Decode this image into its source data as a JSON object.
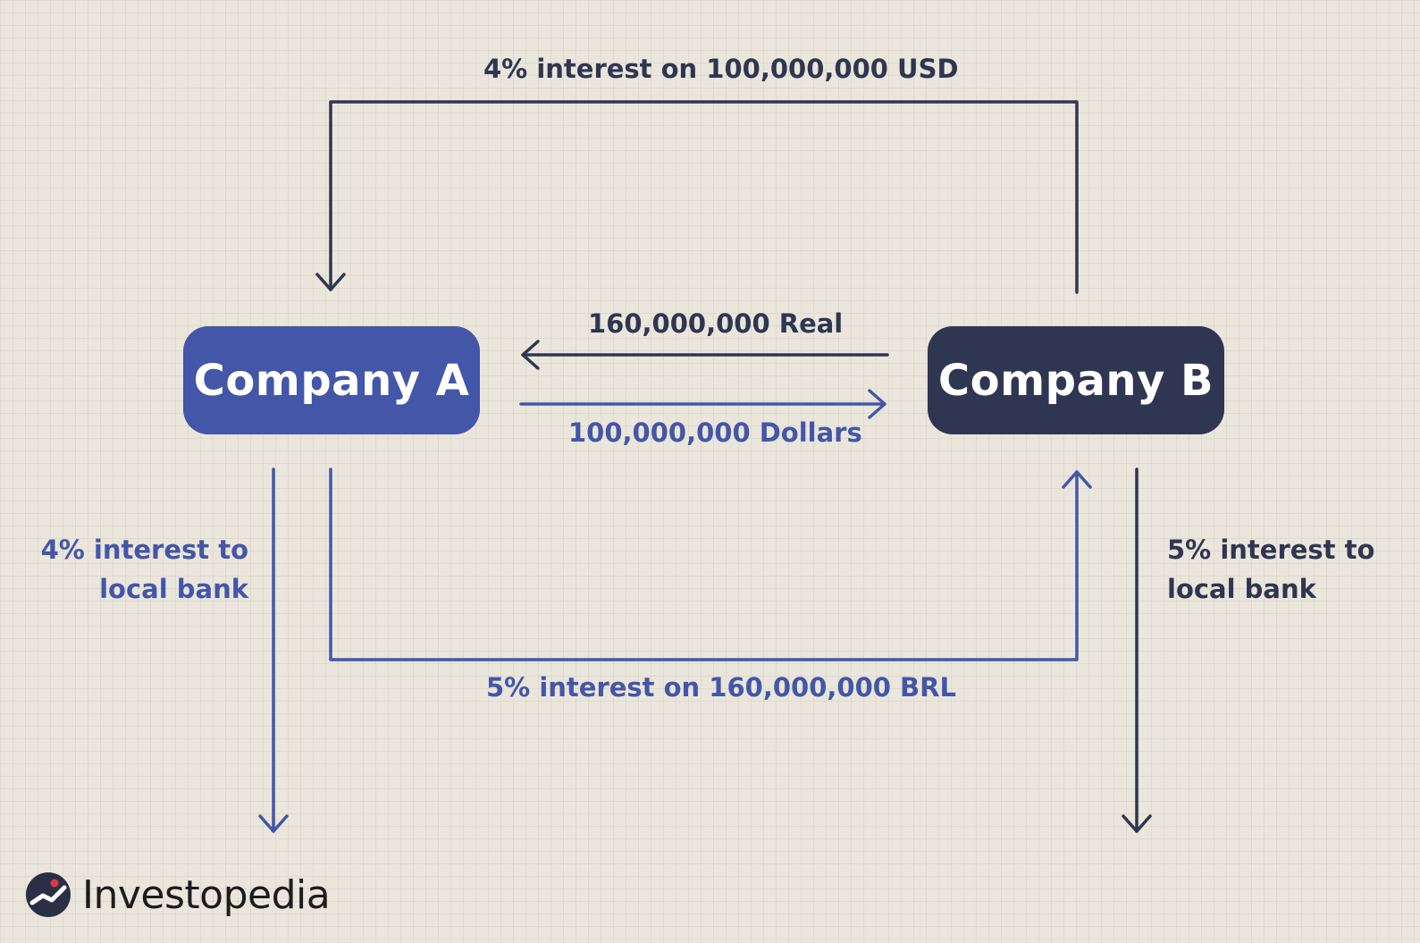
{
  "companies": {
    "a": "Company A",
    "b": "Company B"
  },
  "flows": {
    "top_interest": "4% interest on 100,000,000 USD",
    "real_exchange": "160,000,000 Real",
    "dollar_exchange": "100,000,000 Dollars",
    "bottom_interest": "5% interest on 160,000,000 BRL",
    "left_bank_line1": "4% interest to",
    "left_bank_line2": "local bank",
    "right_bank_line1": "5% interest to",
    "right_bank_line2": "local bank"
  },
  "brand": {
    "name": "Investopedia"
  },
  "colors": {
    "company_a": "#4356a8",
    "company_b": "#2f3652",
    "background": "#ebe6dc"
  }
}
